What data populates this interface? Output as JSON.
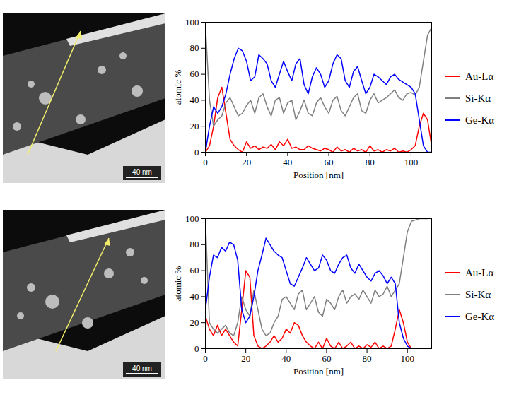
{
  "chart_data": [
    {
      "type": "line",
      "xlabel": "Position [nm]",
      "ylabel": "atomic %",
      "xlim": [
        0,
        110
      ],
      "ylim": [
        0,
        100
      ],
      "xticks": [
        0,
        20,
        40,
        60,
        80,
        100
      ],
      "yticks": [
        0,
        20,
        40,
        60,
        80,
        100
      ],
      "legend": "right",
      "annotations": [
        "40 nm"
      ],
      "x": [
        0,
        2,
        4,
        6,
        8,
        10,
        12,
        14,
        16,
        18,
        20,
        22,
        24,
        26,
        28,
        30,
        32,
        34,
        36,
        38,
        40,
        42,
        44,
        46,
        48,
        50,
        52,
        54,
        56,
        58,
        60,
        62,
        64,
        66,
        68,
        70,
        72,
        74,
        76,
        78,
        80,
        82,
        84,
        86,
        88,
        90,
        92,
        94,
        96,
        98,
        100,
        102,
        104,
        106,
        108,
        110
      ],
      "series": [
        {
          "name": "Au-Lα",
          "color": "#ff0000",
          "values": [
            0,
            5,
            20,
            42,
            50,
            30,
            10,
            5,
            2,
            0,
            8,
            3,
            5,
            2,
            4,
            3,
            6,
            2,
            8,
            5,
            10,
            3,
            4,
            2,
            2,
            5,
            3,
            2,
            1,
            3,
            2,
            0,
            4,
            1,
            2,
            0,
            3,
            1,
            2,
            0,
            5,
            1,
            2,
            0,
            2,
            1,
            3,
            0,
            1,
            0,
            2,
            5,
            20,
            30,
            25,
            5
          ]
        },
        {
          "name": "Si-Kα",
          "color": "#808080",
          "values": [
            98,
            40,
            20,
            25,
            28,
            38,
            42,
            35,
            28,
            30,
            36,
            40,
            30,
            42,
            45,
            35,
            28,
            40,
            42,
            30,
            38,
            40,
            25,
            32,
            40,
            30,
            28,
            38,
            42,
            35,
            30,
            40,
            43,
            32,
            28,
            35,
            42,
            45,
            32,
            30,
            40,
            45,
            38,
            40,
            42,
            45,
            48,
            42,
            40,
            45,
            46,
            44,
            50,
            70,
            90,
            96
          ]
        },
        {
          "name": "Ge-Kα",
          "color": "#0000ff",
          "values": [
            0,
            20,
            35,
            30,
            35,
            45,
            60,
            72,
            80,
            78,
            70,
            55,
            58,
            75,
            72,
            68,
            55,
            50,
            60,
            70,
            62,
            55,
            68,
            72,
            52,
            45,
            58,
            65,
            60,
            50,
            55,
            68,
            75,
            72,
            55,
            50,
            62,
            66,
            55,
            45,
            50,
            60,
            58,
            55,
            52,
            58,
            60,
            56,
            54,
            52,
            50,
            45,
            25,
            5,
            0,
            0
          ]
        }
      ]
    },
    {
      "type": "line",
      "xlabel": "Position [nm]",
      "ylabel": "atomic %",
      "xlim": [
        0,
        112
      ],
      "ylim": [
        0,
        100
      ],
      "xticks": [
        0,
        20,
        40,
        60,
        80,
        100
      ],
      "yticks": [
        0,
        20,
        40,
        60,
        80,
        100
      ],
      "legend": "right",
      "annotations": [
        "40 nm"
      ],
      "x": [
        0,
        2,
        4,
        6,
        8,
        10,
        12,
        14,
        16,
        18,
        20,
        22,
        24,
        26,
        28,
        30,
        32,
        34,
        36,
        38,
        40,
        42,
        44,
        46,
        48,
        50,
        52,
        54,
        56,
        58,
        60,
        62,
        64,
        66,
        68,
        70,
        72,
        74,
        76,
        78,
        80,
        82,
        84,
        86,
        88,
        90,
        92,
        94,
        96,
        98,
        100,
        102,
        104,
        106,
        108,
        110
      ],
      "series": [
        {
          "name": "Au-Lα",
          "color": "#ff0000",
          "values": [
            25,
            15,
            10,
            18,
            10,
            15,
            10,
            5,
            2,
            30,
            60,
            55,
            10,
            2,
            0,
            2,
            5,
            10,
            5,
            8,
            15,
            12,
            20,
            18,
            10,
            5,
            2,
            0,
            5,
            0,
            8,
            2,
            0,
            5,
            0,
            2,
            5,
            0,
            2,
            0,
            3,
            1,
            5,
            0,
            2,
            0,
            2,
            15,
            30,
            20,
            5,
            0,
            0,
            0,
            0,
            0
          ]
        },
        {
          "name": "Si-Kα",
          "color": "#808080",
          "values": [
            100,
            20,
            15,
            12,
            15,
            18,
            12,
            10,
            20,
            40,
            30,
            25,
            45,
            30,
            15,
            10,
            12,
            20,
            25,
            38,
            40,
            35,
            30,
            42,
            45,
            30,
            35,
            40,
            28,
            25,
            38,
            35,
            30,
            40,
            45,
            35,
            40,
            42,
            38,
            45,
            40,
            35,
            45,
            40,
            42,
            48,
            40,
            45,
            50,
            70,
            90,
            98,
            99,
            100,
            100,
            100
          ]
        },
        {
          "name": "Ge-Kα",
          "color": "#0000ff",
          "values": [
            30,
            55,
            72,
            70,
            78,
            75,
            82,
            80,
            68,
            30,
            20,
            25,
            40,
            60,
            72,
            85,
            80,
            75,
            72,
            70,
            60,
            50,
            48,
            55,
            62,
            70,
            65,
            60,
            62,
            72,
            68,
            60,
            58,
            65,
            70,
            72,
            62,
            58,
            65,
            60,
            55,
            52,
            58,
            60,
            56,
            50,
            55,
            50,
            20,
            8,
            2,
            0,
            0,
            0,
            0,
            0
          ]
        }
      ]
    }
  ]
}
